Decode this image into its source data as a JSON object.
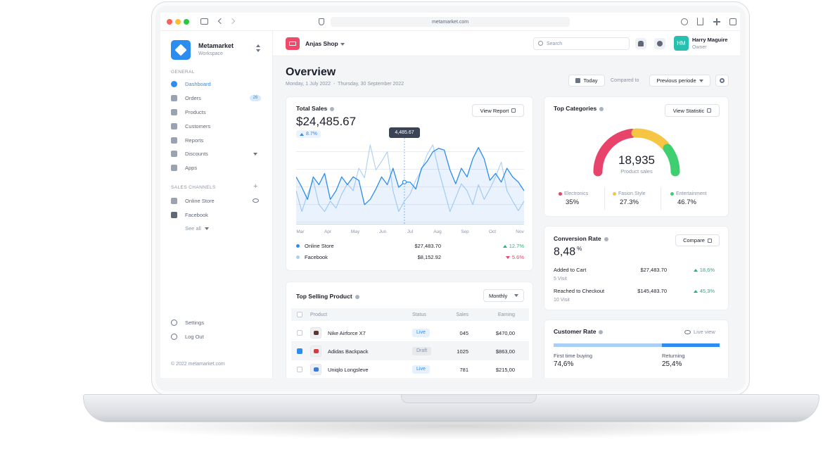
{
  "browser": {
    "url": "metamarket.com"
  },
  "sidebar": {
    "brand": "Metamarket",
    "workspace": "Workspace",
    "general_label": "GENERAL",
    "nav": [
      {
        "label": "Dashboard"
      },
      {
        "label": "Orders",
        "badge": "26"
      },
      {
        "label": "Products"
      },
      {
        "label": "Customers"
      },
      {
        "label": "Reports"
      },
      {
        "label": "Discounts"
      },
      {
        "label": "Apps"
      }
    ],
    "channels_label": "SALES CHANNELS",
    "channels": [
      "Online Store",
      "Facebook"
    ],
    "see_all": "See all",
    "bottom": [
      "Settings",
      "Log Out"
    ],
    "footer": "© 2022 metamarket.com"
  },
  "topbar": {
    "shop": "Anjas Shop",
    "search": "Search",
    "initials": "HM",
    "user": "Harry Maguire",
    "role": "Owner"
  },
  "header": {
    "title": "Overview",
    "dates": "Monday, 1 July 2022  -  Thursday, 30 September 2022",
    "today": "Today",
    "compared_label": "Compared to",
    "compared_value": "Previous periode"
  },
  "total_sales": {
    "title": "Total Sales",
    "value": "$24,485.67",
    "change": "8.7%",
    "button": "View Report",
    "tooltip": "4,485.67",
    "chart": {
      "type": "line",
      "months": [
        "Mar",
        "Apr",
        "May",
        "Jun",
        "Jul",
        "Aug",
        "Sep",
        "Oct",
        "Nov"
      ],
      "ylim": [
        0,
        100
      ],
      "series": [
        {
          "name": "Online Store",
          "color": "#2d8cf0",
          "values": [
            55,
            43,
            29,
            55,
            46,
            59,
            29,
            39,
            55,
            46,
            55,
            51,
            23,
            29,
            41,
            55,
            46,
            65,
            43,
            49,
            49,
            41,
            65,
            73,
            84,
            88,
            86,
            63,
            47,
            65,
            55,
            76,
            89,
            76,
            51,
            59,
            49,
            65,
            55,
            49,
            39
          ]
        },
        {
          "name": "Facebook",
          "color": "#a9cff6",
          "values": [
            39,
            15,
            35,
            51,
            23,
            15,
            27,
            19,
            35,
            47,
            39,
            65,
            54,
            92,
            63,
            73,
            84,
            39,
            15,
            27,
            35,
            51,
            63,
            81,
            92,
            63,
            39,
            15,
            31,
            47,
            39,
            23,
            46,
            29,
            41,
            55,
            72,
            39,
            27,
            16,
            27
          ]
        }
      ]
    },
    "legend": [
      {
        "amount": "$27,483.70",
        "change": "12.7%",
        "change_color": "#22b573"
      },
      {
        "amount": "$8,152.92",
        "change": "5.6%",
        "change_color": "#e8436b"
      }
    ]
  },
  "top_categories": {
    "title": "Top Categories",
    "button": "View Statistic",
    "total": "18,935",
    "total_label": "Product sales",
    "items": [
      {
        "name": "Electronics",
        "value": "35%",
        "color": "#e8436b"
      },
      {
        "name": "Fasion Style",
        "value": "27.3%",
        "color": "#f6c544"
      },
      {
        "name": "Entertainment",
        "value": "46.7%",
        "color": "#3ecf71"
      }
    ]
  },
  "conversion": {
    "title": "Conversion Rate",
    "button": "Compare",
    "rate": "8,48",
    "rate_unit": "%",
    "rows": [
      {
        "label": "Added to Cart",
        "visits": "5 Visit",
        "amount": "$27,483.70",
        "change": "18,6%"
      },
      {
        "label": "Reached to Checkout",
        "visits": "10 Visit",
        "amount": "$145,483.70",
        "change": "45,3%"
      }
    ]
  },
  "customer_rate": {
    "title": "Customer Rate",
    "live": "Live view",
    "first_label": "First time buying",
    "first_value": "74,6%",
    "returning_label": "Returning",
    "returning_value": "25,4%"
  },
  "top_selling": {
    "title": "Top Selling Product",
    "period": "Monthly",
    "columns": [
      "Product",
      "Status",
      "Sales",
      "Earning"
    ],
    "rows": [
      {
        "name": "Nike Airforce X7",
        "status": "Live",
        "status_color": "#2d8cf0",
        "sales": "045",
        "earning": "$470,00",
        "checked": false
      },
      {
        "name": "Adidas Backpack",
        "status": "Draft",
        "status_color": "#8a94a6",
        "sales": "1025",
        "earning": "$863,00",
        "checked": true
      },
      {
        "name": "Uniqlo Longsleve",
        "status": "Live",
        "status_color": "#2d8cf0",
        "sales": "781",
        "earning": "$215,00",
        "checked": false
      }
    ]
  }
}
